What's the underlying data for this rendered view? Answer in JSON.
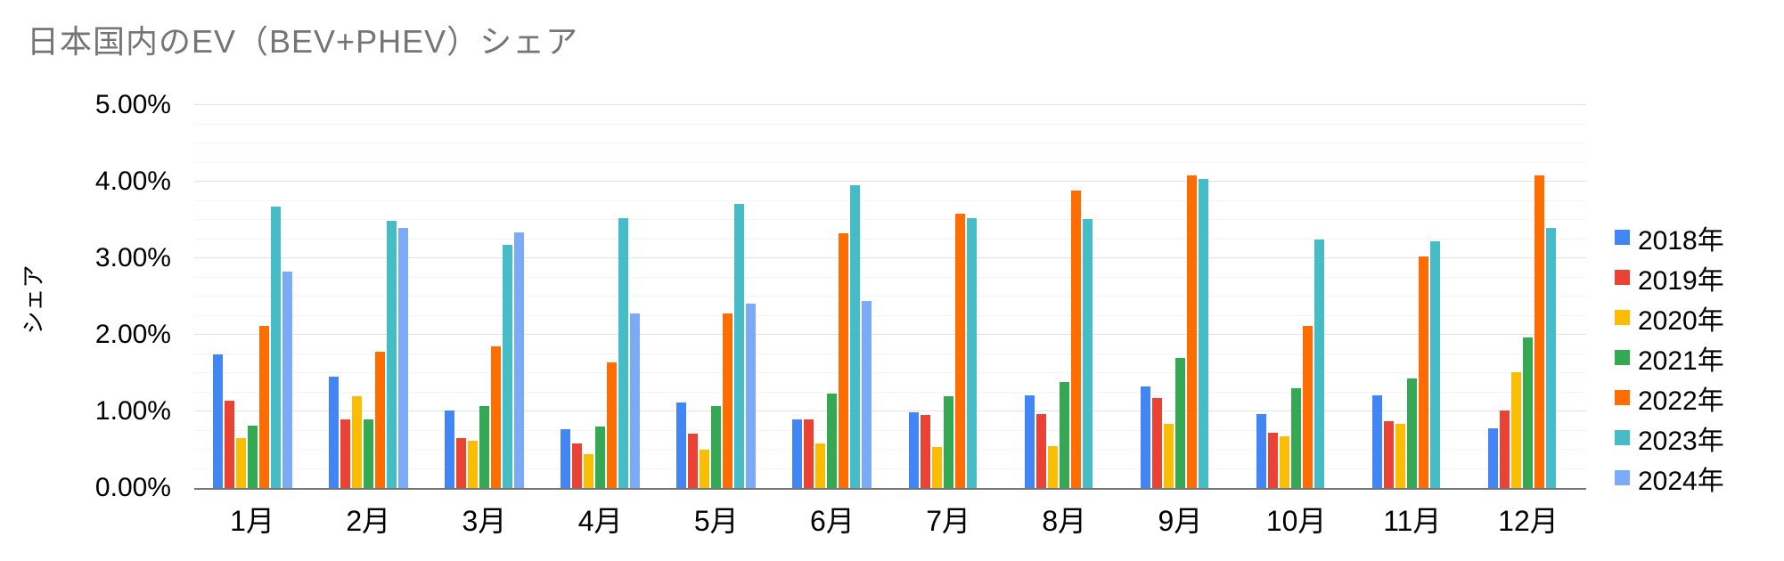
{
  "chart_data": {
    "type": "bar",
    "title": "日本国内のEV（BEV+PHEV）シェア",
    "title_color": "#757575",
    "ylabel": "シェア",
    "xlabel": "",
    "ylim": [
      0,
      5
    ],
    "y_ticks": [
      "0.00%",
      "1.00%",
      "2.00%",
      "3.00%",
      "4.00%",
      "5.00%"
    ],
    "y_unit": "percent",
    "grid": true,
    "legend_position": "right",
    "categories": [
      "1月",
      "2月",
      "3月",
      "4月",
      "5月",
      "6月",
      "7月",
      "8月",
      "9月",
      "10月",
      "11月",
      "12月"
    ],
    "series": [
      {
        "name": "2018年",
        "color": "#4285F4",
        "values": [
          1.75,
          1.45,
          1.01,
          0.77,
          1.12,
          0.9,
          0.99,
          1.21,
          1.33,
          0.96,
          1.21,
          0.78
        ]
      },
      {
        "name": "2019年",
        "color": "#EA4335",
        "values": [
          1.14,
          0.89,
          0.65,
          0.58,
          0.71,
          0.9,
          0.95,
          0.96,
          1.17,
          0.72,
          0.87,
          1.01
        ]
      },
      {
        "name": "2020年",
        "color": "#FBBC04",
        "values": [
          0.65,
          1.2,
          0.62,
          0.44,
          0.5,
          0.58,
          0.53,
          0.55,
          0.84,
          0.68,
          0.84,
          1.51
        ]
      },
      {
        "name": "2021年",
        "color": "#34A853",
        "values": [
          0.81,
          0.9,
          1.07,
          0.8,
          1.07,
          1.23,
          1.2,
          1.38,
          1.7,
          1.3,
          1.43,
          1.97
        ]
      },
      {
        "name": "2022年",
        "color": "#FF6D01",
        "values": [
          2.12,
          1.78,
          1.85,
          1.64,
          2.28,
          3.33,
          3.58,
          3.88,
          4.08,
          2.12,
          3.02,
          4.08
        ]
      },
      {
        "name": "2023年",
        "color": "#46BDC6",
        "values": [
          3.67,
          3.49,
          3.18,
          3.52,
          3.71,
          3.95,
          3.52,
          3.51,
          4.04,
          3.25,
          3.22,
          3.4
        ]
      },
      {
        "name": "2024年",
        "color": "#7BAAF7",
        "values": [
          2.83,
          3.4,
          3.34,
          2.28,
          2.41,
          2.44,
          null,
          null,
          null,
          null,
          null,
          null
        ]
      }
    ]
  }
}
